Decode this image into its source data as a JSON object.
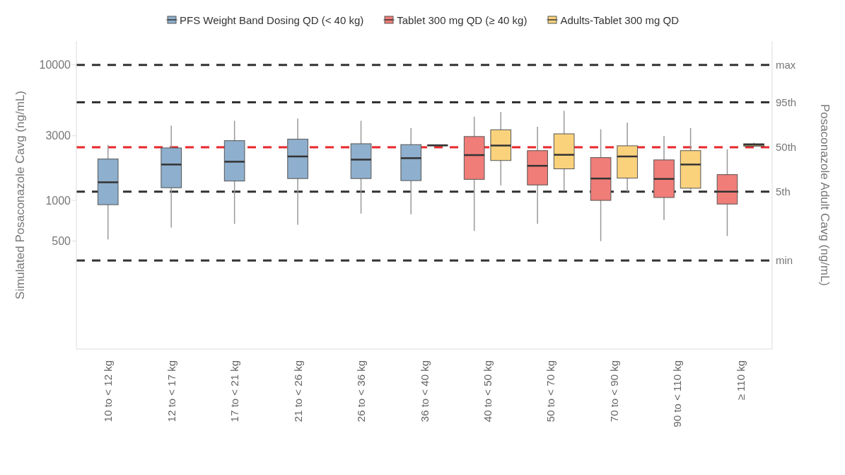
{
  "chart_data": {
    "type": "box",
    "ylabel": "Simulated Posaconazole Cavg (ng/mL)",
    "y2label": "Posaconazole Adult Cavg (ng/mL)",
    "categories": [
      "10 to < 12 kg",
      "12 to < 17 kg",
      "17 to < 21 kg",
      "21 to < 26 kg",
      "26 to < 36 kg",
      "36 to < 40 kg",
      "40 to < 50 kg",
      "50 to < 70 kg",
      "70 to < 90 kg",
      "90 to < 110 kg",
      "≥ 110 kg"
    ],
    "log": true,
    "ylim": [
      80,
      15000
    ],
    "yticks": [
      500,
      1000,
      3000,
      10000
    ],
    "grid": false,
    "legend": "top",
    "series": [
      {
        "name": "PFS Weight Band Dosing QD (< 40 kg)",
        "color": "#8eafcd",
        "boxes": [
          {
            "low": 515,
            "q1": 930,
            "median": 1360,
            "q3": 2020,
            "high": 2570
          },
          {
            "low": 630,
            "q1": 1240,
            "median": 1840,
            "q3": 2440,
            "high": 3560
          },
          {
            "low": 670,
            "q1": 1390,
            "median": 1930,
            "q3": 2760,
            "high": 3870
          },
          {
            "low": 660,
            "q1": 1450,
            "median": 2110,
            "q3": 2830,
            "high": 4020
          },
          {
            "low": 800,
            "q1": 1450,
            "median": 2000,
            "q3": 2620,
            "high": 3870
          },
          {
            "low": 790,
            "q1": 1400,
            "median": 2050,
            "q3": 2580,
            "high": 3420
          },
          null,
          null,
          null,
          null,
          null
        ]
      },
      {
        "name": "Tablet 300 mg QD (≥ 40 kg)",
        "color": "#f07d78",
        "boxes": [
          null,
          null,
          null,
          null,
          null,
          null,
          {
            "low": 595,
            "q1": 1430,
            "median": 2160,
            "q3": 2960,
            "high": 4150
          },
          {
            "low": 670,
            "q1": 1300,
            "median": 1800,
            "q3": 2330,
            "high": 3500
          },
          {
            "low": 500,
            "q1": 1000,
            "median": 1450,
            "q3": 2070,
            "high": 3350
          },
          {
            "low": 715,
            "q1": 1050,
            "median": 1440,
            "q3": 1990,
            "high": 2990
          },
          {
            "low": 545,
            "q1": 940,
            "median": 1160,
            "q3": 1550,
            "high": 2380
          }
        ]
      },
      {
        "name": "Adults-Tablet 300 mg QD",
        "color": "#fbd27c",
        "boxes": [
          null,
          null,
          null,
          null,
          null,
          {
            "low": 2530,
            "q1": 2540,
            "median": 2550,
            "q3": 2560,
            "high": 2570
          },
          {
            "low": 1290,
            "q1": 1970,
            "median": 2540,
            "q3": 3320,
            "high": 4490
          },
          {
            "low": 1170,
            "q1": 1710,
            "median": 2170,
            "q3": 3100,
            "high": 4590
          },
          {
            "low": 1160,
            "q1": 1460,
            "median": 2110,
            "q3": 2530,
            "high": 3750
          },
          {
            "low": 1200,
            "q1": 1230,
            "median": 1840,
            "q3": 2330,
            "high": 3420
          },
          {
            "low": 2480,
            "q1": 2510,
            "median": 2580,
            "q3": 2620,
            "high": 2670
          }
        ]
      }
    ],
    "ref_lines": [
      {
        "axis": "y",
        "value": 10000,
        "label": "max",
        "color": "#333333",
        "line_style": "dashed"
      },
      {
        "axis": "y",
        "value": 5300,
        "label": "95th",
        "color": "#333333",
        "line_style": "dashed"
      },
      {
        "axis": "y",
        "value": 2470,
        "label": "50th",
        "color": "#e8262a",
        "line_style": "dashed"
      },
      {
        "axis": "y",
        "value": 1160,
        "label": "5th",
        "color": "#333333",
        "line_style": "dashed"
      },
      {
        "axis": "y",
        "value": 360,
        "label": "min",
        "color": "#333333",
        "line_style": "dashed"
      }
    ]
  }
}
